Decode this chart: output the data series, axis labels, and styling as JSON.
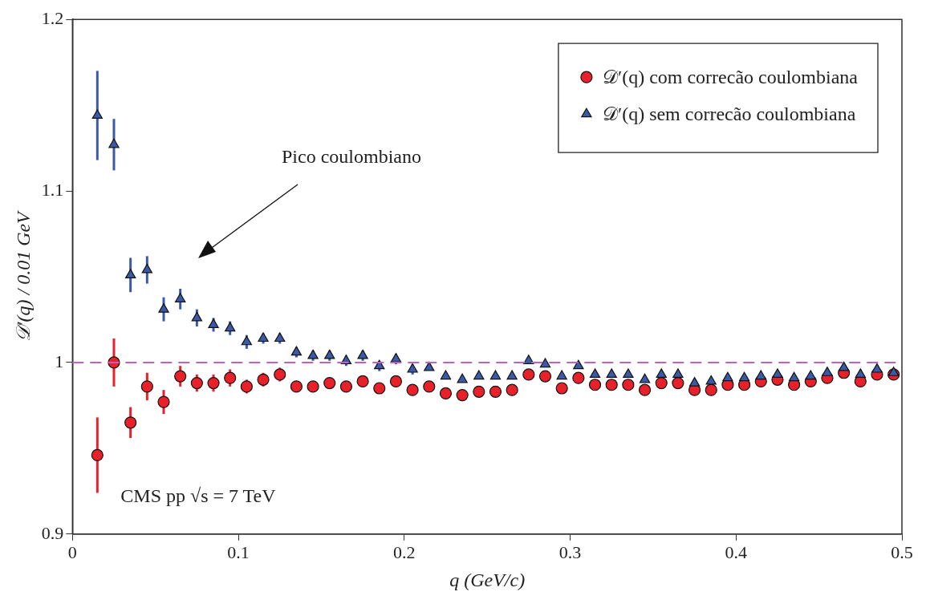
{
  "chart_data": {
    "type": "scatter",
    "xlabel": "q (GeV/c)",
    "ylabel": "𝒟′(q) / 0.01 GeV",
    "x": [
      0.015,
      0.025,
      0.035,
      0.045,
      0.055,
      0.065,
      0.075,
      0.085,
      0.095,
      0.105,
      0.115,
      0.125,
      0.135,
      0.145,
      0.155,
      0.165,
      0.175,
      0.185,
      0.195,
      0.205,
      0.215,
      0.225,
      0.235,
      0.245,
      0.255,
      0.265,
      0.275,
      0.285,
      0.295,
      0.305,
      0.315,
      0.325,
      0.335,
      0.345,
      0.355,
      0.365,
      0.375,
      0.385,
      0.395,
      0.405,
      0.415,
      0.425,
      0.435,
      0.445,
      0.455,
      0.465,
      0.475,
      0.485,
      0.495
    ],
    "series": [
      {
        "name": "𝒟′(q) com correcão coulombiana",
        "color": "#e8202a",
        "marker": "circle",
        "values": [
          0.946,
          1.0,
          0.965,
          0.986,
          0.977,
          0.992,
          0.988,
          0.988,
          0.991,
          0.986,
          0.99,
          0.993,
          0.986,
          0.986,
          0.988,
          0.986,
          0.989,
          0.985,
          0.989,
          0.984,
          0.986,
          0.982,
          0.981,
          0.983,
          0.983,
          0.984,
          0.993,
          0.992,
          0.985,
          0.991,
          0.987,
          0.987,
          0.987,
          0.984,
          0.988,
          0.988,
          0.984,
          0.984,
          0.987,
          0.987,
          0.989,
          0.99,
          0.987,
          0.989,
          0.991,
          0.994,
          0.989,
          0.993,
          0.993
        ],
        "errors": [
          0.022,
          0.014,
          0.009,
          0.008,
          0.007,
          0.006,
          0.005,
          0.005,
          0.005,
          0.004,
          0.004,
          0.004,
          0.003,
          0.003,
          0.003,
          0.003,
          0.003,
          0.003,
          0.003,
          0.003,
          null,
          null,
          null,
          null,
          null,
          null,
          null,
          null,
          null,
          null,
          null,
          null,
          null,
          null,
          null,
          null,
          null,
          null,
          null,
          null,
          null,
          null,
          null,
          null,
          null,
          null,
          null,
          null,
          null
        ]
      },
      {
        "name": "𝒟′(q) sem correcão coulombiana",
        "color": "#3a5aa8",
        "marker": "triangle",
        "values": [
          1.144,
          1.127,
          1.051,
          1.054,
          1.031,
          1.037,
          1.026,
          1.022,
          1.02,
          1.012,
          1.014,
          1.014,
          1.006,
          1.004,
          1.004,
          1.001,
          1.004,
          0.998,
          1.002,
          0.996,
          0.997,
          0.992,
          0.99,
          0.992,
          0.992,
          0.992,
          1.001,
          0.999,
          0.992,
          0.998,
          0.993,
          0.993,
          0.993,
          0.99,
          0.993,
          0.993,
          0.988,
          0.989,
          0.991,
          0.991,
          0.992,
          0.993,
          0.991,
          0.992,
          0.994,
          0.997,
          0.993,
          0.996,
          0.994
        ],
        "errors": [
          0.026,
          0.015,
          0.01,
          0.008,
          0.007,
          0.006,
          0.005,
          0.004,
          0.004,
          0.004,
          0.003,
          0.003,
          0.003,
          0.003,
          0.003,
          0.003,
          0.003,
          0.003,
          0.003,
          0.003,
          null,
          null,
          null,
          null,
          null,
          null,
          null,
          null,
          null,
          null,
          null,
          null,
          null,
          null,
          null,
          null,
          null,
          null,
          null,
          null,
          null,
          null,
          null,
          null,
          null,
          null,
          null,
          null,
          null
        ]
      }
    ],
    "xlim": [
      0,
      0.5
    ],
    "xticks": [
      0,
      0.1,
      0.2,
      0.3,
      0.4,
      0.5
    ],
    "ylim": [
      0.9,
      1.2
    ],
    "yticks": [
      0.9,
      1,
      1.1,
      1.2
    ],
    "grid": false,
    "legend": "top right",
    "ref_lines": [
      {
        "axis": "y",
        "value": 1,
        "color": "#c060c0",
        "line_style": "dashed"
      }
    ],
    "annotations": [
      "Pico coulombiano",
      "CMS pp √s = 7 TeV"
    ]
  }
}
